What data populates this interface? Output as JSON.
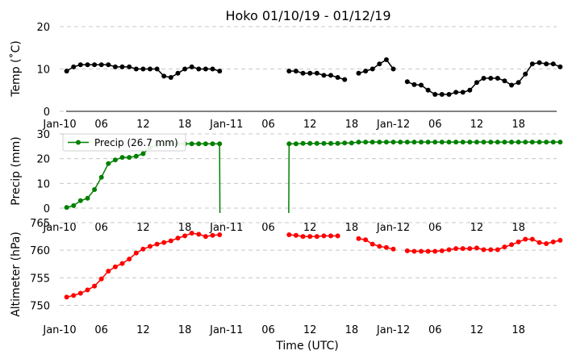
{
  "chart_data": {
    "title": "Hoko 01/10/19 - 01/12/19",
    "xlabel": "Time (UTC)",
    "x_tick_labels": [
      "Jan-10",
      "06",
      "12",
      "18",
      "Jan-11",
      "06",
      "12",
      "18",
      "Jan-12",
      "06",
      "12",
      "18"
    ],
    "x_tick_hours": [
      0,
      6,
      12,
      18,
      24,
      30,
      36,
      42,
      48,
      54,
      60,
      66
    ],
    "xlim_hours": [
      0,
      71.5
    ],
    "grid": "horizontal dashed",
    "panels": [
      {
        "type": "line",
        "ylabel": "Temp ($^\\circ$C)",
        "ylabel_text": "Temp (˚C)",
        "ylim": [
          0,
          20
        ],
        "yticks": [
          0,
          10,
          20
        ],
        "color": "#000000",
        "series": [
          {
            "name": "",
            "x": [
              1,
              2,
              3,
              4,
              5,
              6,
              7,
              8,
              9,
              10,
              11,
              12,
              13,
              14,
              15,
              16,
              17,
              18,
              19,
              20,
              21,
              22,
              23,
              24,
              25,
              26,
              27,
              28,
              29,
              30,
              31,
              32,
              33,
              34,
              35,
              36,
              37,
              38,
              39,
              40,
              41,
              42,
              43,
              44,
              45,
              46,
              47,
              48,
              49,
              50,
              51,
              52,
              53,
              54,
              55,
              56,
              57,
              58,
              59,
              60,
              61,
              62,
              63,
              64,
              65,
              66,
              67,
              68,
              69,
              70,
              71,
              72
            ],
            "y": [
              9.5,
              10.5,
              11,
              11,
              11,
              11,
              11,
              10.5,
              10.5,
              10.5,
              10,
              10,
              10,
              10,
              8.3,
              8,
              9,
              10,
              10.5,
              10,
              10,
              10,
              9.5,
              null,
              null,
              null,
              null,
              null,
              null,
              null,
              null,
              null,
              9.5,
              9.5,
              9,
              9,
              9,
              8.5,
              8.5,
              8,
              7.5,
              null,
              9,
              9.5,
              10,
              11.2,
              12.2,
              10,
              null,
              7,
              6.3,
              6.2,
              5,
              4,
              4,
              4,
              4.5,
              4.5,
              5,
              6.8,
              7.8,
              7.8,
              7.8,
              7.2,
              6.2,
              6.8,
              8.8,
              11.2,
              11.5,
              11.2,
              11.2,
              10.5
            ]
          }
        ]
      },
      {
        "type": "line",
        "ylabel": "Precip (mm)",
        "ylim": [
          0,
          30
        ],
        "yticks": [
          0,
          10,
          20,
          30
        ],
        "color": "#008000",
        "legend": {
          "label": "Precip (26.7 mm)",
          "placement": "upper-left"
        },
        "series": [
          {
            "name": "Precip (26.7 mm)",
            "x": [
              1,
              2,
              3,
              4,
              5,
              6,
              7,
              8,
              9,
              10,
              11,
              12,
              13,
              14,
              15,
              16,
              17,
              18,
              19,
              20,
              21,
              22,
              23,
              24,
              25,
              26,
              27,
              28,
              29,
              30,
              31,
              32,
              33,
              34,
              35,
              36,
              37,
              38,
              39,
              40,
              41,
              42,
              43,
              44,
              45,
              46,
              47,
              48,
              49,
              50,
              51,
              52,
              53,
              54,
              55,
              56,
              57,
              58,
              59,
              60,
              61,
              62,
              63,
              64,
              65,
              66,
              67,
              68,
              69,
              70,
              71,
              72
            ],
            "y": [
              0.3,
              1,
              3,
              4,
              7.5,
              12.5,
              18,
              19.5,
              20.5,
              20.5,
              21,
              22,
              24.5,
              25.5,
              26,
              26,
              26,
              26,
              26,
              26,
              26,
              26,
              26,
              null,
              null,
              null,
              null,
              null,
              null,
              null,
              null,
              null,
              26,
              26,
              26.2,
              26.2,
              26.2,
              26.2,
              26.2,
              26.2,
              26.3,
              26.3,
              26.7,
              26.7,
              26.7,
              26.7,
              26.7,
              26.7,
              26.7,
              26.7,
              26.7,
              26.7,
              26.7,
              26.7,
              26.7,
              26.7,
              26.7,
              26.7,
              26.7,
              26.7,
              26.7,
              26.7,
              26.7,
              26.7,
              26.7,
              26.7,
              26.7,
              26.7,
              26.7,
              26.7,
              26.7,
              26.7
            ]
          }
        ]
      },
      {
        "type": "line",
        "ylabel": "Altimeter (hPa)",
        "ylim": [
          747,
          765
        ],
        "yticks": [
          750,
          755,
          760,
          765
        ],
        "color": "#ff0000",
        "series": [
          {
            "name": "",
            "x": [
              1,
              2,
              3,
              4,
              5,
              6,
              7,
              8,
              9,
              10,
              11,
              12,
              13,
              14,
              15,
              16,
              17,
              18,
              19,
              20,
              21,
              22,
              23,
              24,
              25,
              26,
              27,
              28,
              29,
              30,
              31,
              32,
              33,
              34,
              35,
              36,
              37,
              38,
              39,
              40,
              41,
              42,
              43,
              44,
              45,
              46,
              47,
              48,
              49,
              50,
              51,
              52,
              53,
              54,
              55,
              56,
              57,
              58,
              59,
              60,
              61,
              62,
              63,
              64,
              65,
              66,
              67,
              68,
              69,
              70,
              71,
              72
            ],
            "y": [
              751.5,
              751.8,
              752.2,
              752.8,
              753.5,
              754.8,
              756.2,
              757,
              757.6,
              758.4,
              759.5,
              760.2,
              760.7,
              761.1,
              761.4,
              761.7,
              762.2,
              762.6,
              763.1,
              762.9,
              762.5,
              762.7,
              762.8,
              null,
              null,
              null,
              null,
              null,
              null,
              null,
              null,
              null,
              762.8,
              762.7,
              762.5,
              762.5,
              762.5,
              762.6,
              762.6,
              762.6,
              null,
              null,
              762.1,
              761.9,
              761.1,
              760.7,
              760.5,
              760.2,
              null,
              759.9,
              759.8,
              759.8,
              759.8,
              759.8,
              759.9,
              760.1,
              760.3,
              760.3,
              760.3,
              760.4,
              760.1,
              760.1,
              760.1,
              760.6,
              761,
              761.5,
              762,
              762,
              761.4,
              761.2,
              761.5,
              761.8
            ]
          }
        ]
      }
    ]
  }
}
